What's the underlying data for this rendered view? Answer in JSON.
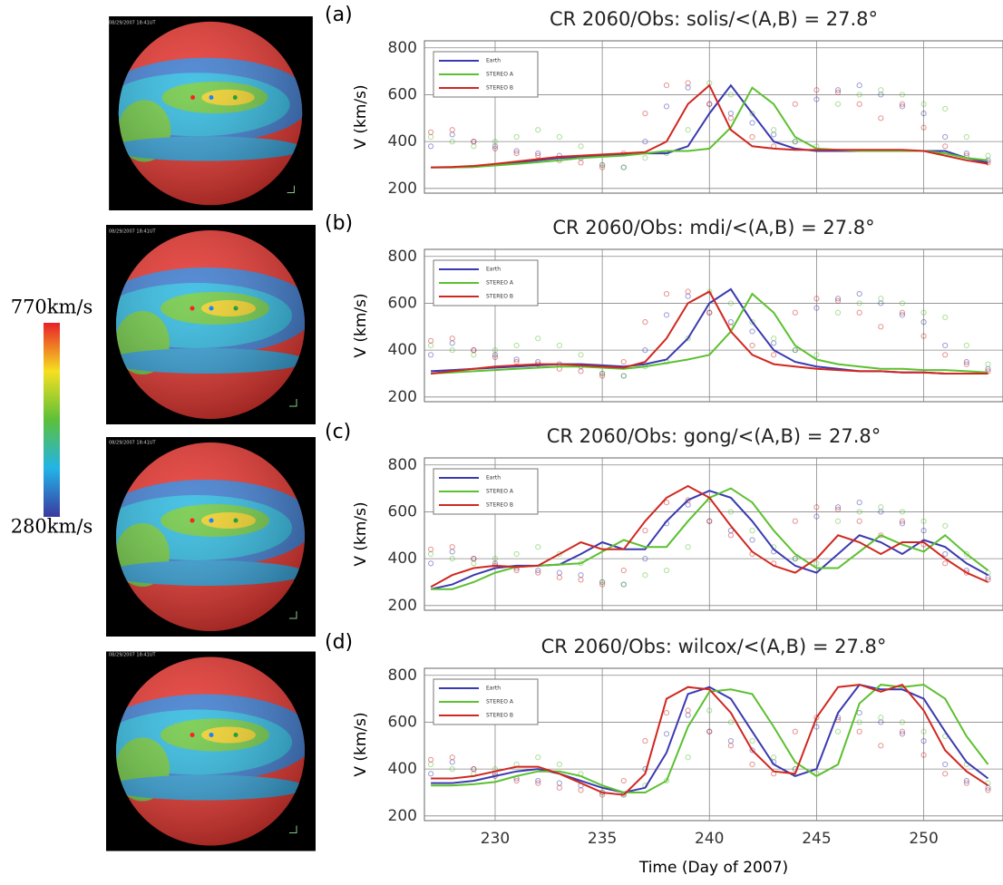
{
  "images": [
    "08/29/2007 18:41UT",
    "08/29/2007 18:41UT",
    "08/29/2007 18:41UT",
    "08/29/2007 18:41UT"
  ],
  "colorbar": {
    "max_label": "770km/s",
    "min_label": "280km/s"
  },
  "chart_data": [
    {
      "type": "line",
      "panel": "(a)",
      "title": "CR 2060/Obs: solis/<(A,B) = 27.8°",
      "ylabel": "V (km/s)",
      "xlim": [
        226.7,
        253.7
      ],
      "ylim": [
        180,
        830
      ],
      "yticks": [
        200,
        400,
        600,
        800
      ],
      "xtick_values": [
        230,
        235,
        240,
        245,
        250
      ],
      "show_xtick_labels": false,
      "grid": true,
      "legend": "upper-left",
      "x": [
        227,
        228,
        229,
        230,
        231,
        232,
        233,
        234,
        235,
        236,
        237,
        238,
        239,
        240,
        241,
        242,
        243,
        244,
        245,
        246,
        247,
        248,
        249,
        250,
        251,
        252,
        253
      ],
      "series": [
        {
          "name": "Earth",
          "color": "#3a3ab0",
          "values": [
            290,
            290,
            292,
            300,
            310,
            320,
            330,
            335,
            340,
            345,
            350,
            350,
            380,
            520,
            640,
            520,
            400,
            370,
            360,
            360,
            360,
            360,
            360,
            360,
            360,
            330,
            310
          ],
          "observed": [
            380,
            430,
            400,
            380,
            360,
            350,
            340,
            330,
            300,
            290,
            400,
            550,
            630,
            560,
            520,
            480,
            430,
            400,
            580,
            620,
            640,
            600,
            550,
            520,
            420,
            350,
            320
          ]
        },
        {
          "name": "STEREO A",
          "color": "#5cc030",
          "values": [
            290,
            290,
            292,
            298,
            305,
            312,
            320,
            330,
            335,
            340,
            350,
            360,
            360,
            370,
            460,
            630,
            560,
            420,
            370,
            365,
            360,
            360,
            360,
            360,
            350,
            330,
            320
          ],
          "observed": [
            420,
            400,
            380,
            400,
            420,
            450,
            420,
            380,
            300,
            290,
            330,
            350,
            450,
            650,
            600,
            520,
            450,
            400,
            380,
            560,
            600,
            620,
            600,
            560,
            540,
            420,
            340
          ]
        },
        {
          "name": "STEREO B",
          "color": "#d02820",
          "values": [
            290,
            292,
            296,
            305,
            315,
            325,
            335,
            340,
            345,
            350,
            355,
            400,
            560,
            640,
            450,
            380,
            370,
            365,
            365,
            365,
            365,
            365,
            365,
            360,
            340,
            320,
            305
          ],
          "observed": [
            440,
            450,
            400,
            370,
            350,
            340,
            320,
            310,
            290,
            350,
            520,
            640,
            650,
            560,
            500,
            420,
            380,
            560,
            620,
            610,
            560,
            500,
            560,
            460,
            380,
            340,
            310
          ]
        }
      ]
    },
    {
      "type": "line",
      "panel": "(b)",
      "title": "CR 2060/Obs: mdi/<(A,B) = 27.8°",
      "ylabel": "V (km/s)",
      "xlim": [
        226.7,
        253.7
      ],
      "ylim": [
        180,
        830
      ],
      "yticks": [
        200,
        400,
        600,
        800
      ],
      "xtick_values": [
        230,
        235,
        240,
        245,
        250
      ],
      "show_xtick_labels": false,
      "grid": true,
      "legend": "upper-left",
      "x": [
        227,
        228,
        229,
        230,
        231,
        232,
        233,
        234,
        235,
        236,
        237,
        238,
        239,
        240,
        241,
        242,
        243,
        244,
        245,
        246,
        247,
        248,
        249,
        250,
        251,
        252,
        253
      ],
      "series": [
        {
          "name": "Earth",
          "color": "#3a3ab0",
          "values": [
            310,
            315,
            320,
            325,
            330,
            335,
            340,
            340,
            335,
            330,
            340,
            360,
            450,
            600,
            660,
            520,
            400,
            350,
            330,
            320,
            310,
            310,
            305,
            305,
            300,
            300,
            300
          ],
          "observed": [
            380,
            430,
            400,
            380,
            360,
            350,
            340,
            330,
            300,
            290,
            400,
            550,
            630,
            560,
            520,
            480,
            430,
            400,
            580,
            620,
            640,
            600,
            550,
            520,
            420,
            350,
            320
          ]
        },
        {
          "name": "STEREO A",
          "color": "#5cc030",
          "values": [
            300,
            305,
            310,
            315,
            320,
            325,
            330,
            330,
            325,
            320,
            330,
            345,
            360,
            380,
            480,
            640,
            560,
            420,
            360,
            340,
            330,
            320,
            320,
            315,
            315,
            310,
            305
          ],
          "observed": [
            420,
            400,
            380,
            400,
            420,
            450,
            420,
            380,
            300,
            290,
            330,
            350,
            450,
            650,
            600,
            520,
            450,
            400,
            380,
            560,
            600,
            620,
            600,
            560,
            540,
            420,
            340
          ]
        },
        {
          "name": "STEREO B",
          "color": "#d02820",
          "values": [
            300,
            310,
            320,
            330,
            335,
            340,
            340,
            335,
            330,
            325,
            350,
            450,
            600,
            650,
            480,
            380,
            340,
            330,
            320,
            315,
            310,
            310,
            305,
            305,
            300,
            300,
            300
          ],
          "observed": [
            440,
            450,
            400,
            370,
            350,
            340,
            320,
            310,
            290,
            350,
            520,
            640,
            650,
            560,
            500,
            420,
            380,
            560,
            620,
            610,
            560,
            500,
            560,
            460,
            380,
            340,
            310
          ]
        }
      ]
    },
    {
      "type": "line",
      "panel": "(c)",
      "title": "CR 2060/Obs: gong/<(A,B) = 27.8°",
      "ylabel": "V (km/s)",
      "xlim": [
        226.7,
        253.7
      ],
      "ylim": [
        180,
        830
      ],
      "yticks": [
        200,
        400,
        600,
        800
      ],
      "xtick_values": [
        230,
        235,
        240,
        245,
        250
      ],
      "show_xtick_labels": false,
      "grid": true,
      "legend": "upper-left",
      "x": [
        227,
        228,
        229,
        230,
        231,
        232,
        233,
        234,
        235,
        236,
        237,
        238,
        239,
        240,
        241,
        242,
        243,
        244,
        245,
        246,
        247,
        248,
        249,
        250,
        251,
        252,
        253
      ],
      "series": [
        {
          "name": "Earth",
          "color": "#3a3ab0",
          "values": [
            270,
            290,
            330,
            360,
            370,
            370,
            375,
            420,
            470,
            440,
            440,
            560,
            650,
            690,
            660,
            560,
            440,
            370,
            340,
            420,
            500,
            470,
            420,
            480,
            450,
            380,
            330
          ],
          "observed": [
            380,
            430,
            400,
            380,
            360,
            350,
            340,
            330,
            300,
            290,
            400,
            550,
            630,
            560,
            520,
            480,
            430,
            400,
            580,
            620,
            640,
            600,
            550,
            520,
            420,
            350,
            320
          ]
        },
        {
          "name": "STEREO A",
          "color": "#5cc030",
          "values": [
            270,
            270,
            300,
            340,
            365,
            370,
            375,
            380,
            430,
            480,
            450,
            450,
            560,
            660,
            700,
            640,
            520,
            420,
            360,
            360,
            430,
            500,
            460,
            430,
            500,
            420,
            350
          ],
          "observed": [
            420,
            400,
            380,
            400,
            420,
            450,
            420,
            380,
            300,
            290,
            330,
            350,
            450,
            650,
            600,
            520,
            450,
            400,
            380,
            560,
            600,
            620,
            600,
            560,
            540,
            420,
            340
          ]
        },
        {
          "name": "STEREO B",
          "color": "#d02820",
          "values": [
            280,
            330,
            360,
            370,
            365,
            370,
            420,
            470,
            440,
            440,
            560,
            660,
            710,
            660,
            540,
            430,
            370,
            340,
            400,
            500,
            470,
            420,
            470,
            470,
            400,
            340,
            300
          ],
          "observed": [
            440,
            450,
            400,
            370,
            350,
            340,
            320,
            310,
            290,
            350,
            520,
            640,
            650,
            560,
            500,
            420,
            380,
            560,
            620,
            610,
            560,
            500,
            560,
            460,
            380,
            340,
            310
          ]
        }
      ]
    },
    {
      "type": "line",
      "panel": "(d)",
      "title": "CR 2060/Obs: wilcox/<(A,B) = 27.8°",
      "ylabel": "V (km/s)",
      "xlabel": "Time (Day of 2007)",
      "xlim": [
        226.7,
        253.7
      ],
      "ylim": [
        180,
        830
      ],
      "yticks": [
        200,
        400,
        600,
        800
      ],
      "xtick_values": [
        230,
        235,
        240,
        245,
        250
      ],
      "show_xtick_labels": true,
      "grid": true,
      "legend": "upper-left",
      "x": [
        227,
        228,
        229,
        230,
        231,
        232,
        233,
        234,
        235,
        236,
        237,
        238,
        239,
        240,
        241,
        242,
        243,
        244,
        245,
        246,
        247,
        248,
        249,
        250,
        251,
        252,
        253
      ],
      "series": [
        {
          "name": "Earth",
          "color": "#3a3ab0",
          "values": [
            340,
            340,
            350,
            370,
            390,
            400,
            380,
            350,
            320,
            300,
            320,
            470,
            720,
            750,
            700,
            560,
            420,
            370,
            400,
            640,
            760,
            740,
            740,
            700,
            560,
            430,
            360
          ],
          "observed": [
            380,
            430,
            400,
            380,
            360,
            350,
            340,
            330,
            300,
            290,
            400,
            550,
            630,
            560,
            520,
            480,
            430,
            400,
            580,
            620,
            640,
            600,
            550,
            520,
            420,
            350,
            320
          ]
        },
        {
          "name": "STEREO A",
          "color": "#5cc030",
          "values": [
            330,
            330,
            335,
            345,
            370,
            390,
            390,
            370,
            330,
            300,
            300,
            350,
            580,
            730,
            740,
            720,
            580,
            430,
            370,
            420,
            680,
            760,
            750,
            760,
            700,
            540,
            420
          ],
          "observed": [
            420,
            400,
            380,
            400,
            420,
            450,
            420,
            380,
            300,
            290,
            330,
            350,
            450,
            650,
            600,
            520,
            450,
            400,
            380,
            560,
            600,
            620,
            600,
            560,
            540,
            420,
            340
          ]
        },
        {
          "name": "STEREO B",
          "color": "#d02820",
          "values": [
            360,
            360,
            370,
            390,
            410,
            410,
            380,
            340,
            300,
            290,
            380,
            700,
            750,
            740,
            640,
            480,
            390,
            380,
            620,
            750,
            760,
            730,
            760,
            650,
            480,
            390,
            330
          ],
          "observed": [
            440,
            450,
            400,
            370,
            350,
            340,
            320,
            310,
            290,
            350,
            520,
            640,
            650,
            560,
            500,
            420,
            380,
            560,
            620,
            610,
            560,
            500,
            560,
            460,
            380,
            340,
            310
          ]
        }
      ]
    }
  ]
}
